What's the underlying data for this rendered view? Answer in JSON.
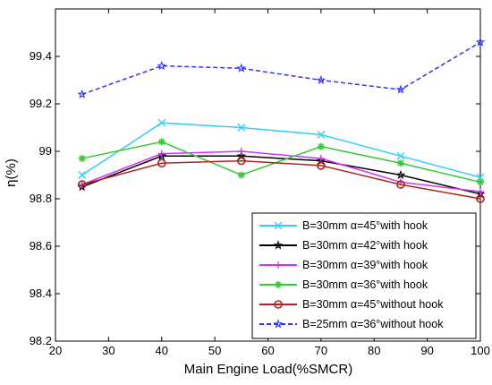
{
  "chart_data": {
    "type": "line",
    "title": "",
    "xlabel": "Main Engine Load(%SMCR)",
    "ylabel": "η(%)",
    "xlim": [
      20,
      100
    ],
    "ylim": [
      98.2,
      99.6
    ],
    "xticks": [
      20,
      30,
      40,
      50,
      60,
      70,
      80,
      90,
      100
    ],
    "yticks": [
      98.2,
      98.4,
      98.6,
      98.8,
      99,
      99.2,
      99.4
    ],
    "ytick_labels": [
      "98.2",
      "98.4",
      "98.6",
      "98.8",
      "99",
      "99.2",
      "99.4"
    ],
    "grid": false,
    "legend_position": "bottom-right",
    "x": [
      25,
      40,
      55,
      70,
      85,
      100
    ],
    "series": [
      {
        "name": "B=30mm α=45°with hook",
        "values": [
          98.9,
          99.12,
          99.1,
          99.07,
          98.98,
          98.89
        ],
        "color": "#33ccff",
        "marker": "x",
        "dash": false
      },
      {
        "name": "B=30mm α=42°with hook",
        "values": [
          98.85,
          98.98,
          98.98,
          98.96,
          98.9,
          98.82
        ],
        "color": "#000000",
        "marker": "star",
        "dash": false
      },
      {
        "name": "B=30mm α=39°with hook",
        "values": [
          98.86,
          98.99,
          99.0,
          98.97,
          98.87,
          98.83
        ],
        "color": "#cc33ff",
        "marker": "plus",
        "dash": false
      },
      {
        "name": "B=30mm α=36°with hook",
        "values": [
          98.97,
          99.04,
          98.9,
          99.02,
          98.95,
          98.87
        ],
        "color": "#33cc33",
        "marker": "asterisk",
        "dash": false
      },
      {
        "name": "B=30mm α=45°without hook",
        "values": [
          98.86,
          98.95,
          98.96,
          98.94,
          98.86,
          98.8
        ],
        "color": "#b22222",
        "marker": "circle",
        "dash": false
      },
      {
        "name": "B=25mm α=36°without hook",
        "values": [
          99.24,
          99.36,
          99.35,
          99.3,
          99.26,
          99.46
        ],
        "color": "#3333ff",
        "marker": "star",
        "dash": true
      }
    ]
  }
}
